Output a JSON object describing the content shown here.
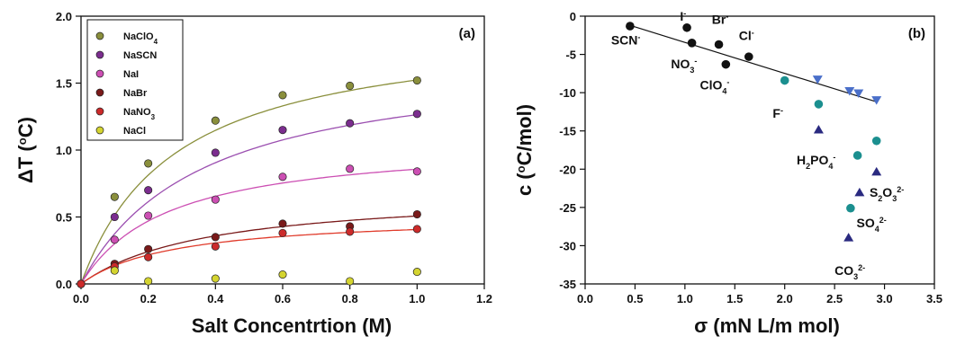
{
  "chart_data": [
    {
      "panel": "(a)",
      "type": "scatter",
      "xlabel": "Salt Concentrtion (M)",
      "ylabel_main": "ΔT (",
      "ylabel_sup": "o",
      "ylabel_tail": "C)",
      "xlim": [
        0,
        1.2
      ],
      "ylim": [
        0,
        2.0
      ],
      "xticks": [
        "0.0",
        "0.2",
        "0.4",
        "0.6",
        "0.8",
        "1.0",
        "1.2"
      ],
      "yticks": [
        "0.0",
        "0.5",
        "1.0",
        "1.5",
        "2.0"
      ],
      "grid": false,
      "legend_position": "top-left",
      "series": [
        {
          "name": "NaClO",
          "name_sub": "4",
          "color": "#8a8f3c",
          "line_color": "#8a8f3c",
          "x": [
            0,
            0.1,
            0.2,
            0.4,
            0.6,
            0.8,
            1.0
          ],
          "y": [
            0.0,
            0.65,
            0.9,
            1.22,
            1.41,
            1.48,
            1.52
          ],
          "fit": {
            "vmax": 1.95,
            "k": 0.28
          }
        },
        {
          "name": "NaSCN",
          "name_sub": "",
          "color": "#7b2d8e",
          "line_color": "#9b4fb0",
          "x": [
            0,
            0.1,
            0.2,
            0.4,
            0.6,
            0.8,
            1.0
          ],
          "y": [
            0.0,
            0.5,
            0.7,
            0.98,
            1.15,
            1.2,
            1.27
          ],
          "fit": {
            "vmax": 1.72,
            "k": 0.36
          }
        },
        {
          "name": "NaI",
          "name_sub": "",
          "color": "#cc4fb3",
          "line_color": "#cc4fb3",
          "x": [
            0,
            0.1,
            0.2,
            0.4,
            0.6,
            0.8,
            1.0
          ],
          "y": [
            0.0,
            0.33,
            0.51,
            0.63,
            0.8,
            0.86,
            0.84
          ],
          "fit": {
            "vmax": 1.08,
            "k": 0.26
          }
        },
        {
          "name": "NaBr",
          "name_sub": "",
          "color": "#7a1a1a",
          "line_color": "#7a1a1a",
          "x": [
            0,
            0.1,
            0.2,
            0.4,
            0.6,
            0.8,
            1.0
          ],
          "y": [
            0.0,
            0.15,
            0.26,
            0.35,
            0.45,
            0.43,
            0.52
          ],
          "fit": {
            "vmax": 0.7,
            "k": 0.38
          }
        },
        {
          "name": "NaNO",
          "name_sub": "3",
          "color": "#cc2a2a",
          "line_color": "#e03a2a",
          "x": [
            0,
            0.1,
            0.2,
            0.4,
            0.6,
            0.8,
            1.0
          ],
          "y": [
            0.0,
            0.13,
            0.2,
            0.28,
            0.38,
            0.39,
            0.41
          ],
          "fit": {
            "vmax": 0.52,
            "k": 0.28
          }
        },
        {
          "name": "NaCl",
          "name_sub": "",
          "color": "#d4d430",
          "line_color": "#d4d430",
          "x": [
            0.1,
            0.2,
            0.4,
            0.6,
            0.8,
            1.0
          ],
          "y": [
            0.1,
            0.02,
            0.04,
            0.07,
            0.02,
            0.09
          ],
          "fit": null
        }
      ]
    },
    {
      "panel": "(b)",
      "type": "scatter",
      "xlabel": "σ (mN L/m mol)",
      "ylabel_main": "c (",
      "ylabel_sup": "o",
      "ylabel_tail": "C/mol)",
      "xlim": [
        0,
        3.5
      ],
      "ylim": [
        -35,
        0
      ],
      "xticks": [
        "0.0",
        "0.5",
        "1.0",
        "1.5",
        "2.0",
        "2.5",
        "3.0",
        "3.5"
      ],
      "yticks": [
        "0",
        "-5",
        "-10",
        "-15",
        "-20",
        "-25",
        "-30",
        "-35"
      ],
      "grid": false,
      "fit_line": {
        "x": [
          0.45,
          2.92
        ],
        "y": [
          -1.2,
          -11.2
        ]
      },
      "points": [
        {
          "group": "monovalent",
          "shape": "circle",
          "color": "#111111",
          "x": [
            0.45,
            1.02,
            1.07,
            1.34,
            1.41,
            1.64
          ],
          "y": [
            -1.3,
            -1.5,
            -3.5,
            -3.7,
            -6.3,
            -5.3
          ]
        },
        {
          "group": "cyan",
          "shape": "circle",
          "color": "#1b8f8f",
          "x": [
            2.0,
            2.34,
            2.73,
            2.92,
            2.66
          ],
          "y": [
            -8.4,
            -11.5,
            -18.2,
            -16.3,
            -25.1
          ]
        },
        {
          "group": "blue-down",
          "shape": "tri-down",
          "color": "#4a6fc9",
          "x": [
            2.33,
            2.65,
            2.74,
            2.92
          ],
          "y": [
            -8.3,
            -9.8,
            -10.1,
            -11.0
          ]
        },
        {
          "group": "navy-up",
          "shape": "tri-up",
          "color": "#2a2a80",
          "x": [
            2.34,
            2.92,
            2.75,
            2.64
          ],
          "y": [
            -14.8,
            -20.3,
            -23.0,
            -28.9
          ]
        }
      ],
      "annotations": [
        {
          "parts": [
            [
              "SCN",
              ""
            ],
            [
              "-",
              "sup"
            ]
          ],
          "x": 0.26,
          "y": -3.7
        },
        {
          "parts": [
            [
              "I",
              ""
            ],
            [
              "-",
              "sup"
            ]
          ],
          "x": 0.95,
          "y": -0.6
        },
        {
          "parts": [
            [
              "Br",
              ""
            ],
            [
              "-",
              "sup"
            ]
          ],
          "x": 1.27,
          "y": -1.0
        },
        {
          "parts": [
            [
              "NO",
              ""
            ],
            [
              "3",
              "sub"
            ],
            [
              "-",
              "sup"
            ]
          ],
          "x": 0.86,
          "y": -6.8
        },
        {
          "parts": [
            [
              "Cl",
              ""
            ],
            [
              "-",
              "sup"
            ]
          ],
          "x": 1.54,
          "y": -3.1
        },
        {
          "parts": [
            [
              "ClO",
              ""
            ],
            [
              "4",
              "sub"
            ],
            [
              "-",
              "sup"
            ]
          ],
          "x": 1.15,
          "y": -9.6
        },
        {
          "parts": [
            [
              "F",
              ""
            ],
            [
              "-",
              "sup"
            ]
          ],
          "x": 1.88,
          "y": -13.3
        },
        {
          "parts": [
            [
              "H",
              ""
            ],
            [
              "2",
              "sub"
            ],
            [
              "PO",
              ""
            ],
            [
              "4",
              "sub"
            ],
            [
              "-",
              "sup"
            ]
          ],
          "x": 2.12,
          "y": -19.4
        },
        {
          "parts": [
            [
              "S",
              ""
            ],
            [
              "2",
              "sub"
            ],
            [
              "O",
              ""
            ],
            [
              "3",
              "sub"
            ],
            [
              "2-",
              "sup"
            ]
          ],
          "x": 2.85,
          "y": -23.6
        },
        {
          "parts": [
            [
              "SO",
              ""
            ],
            [
              "4",
              "sub"
            ],
            [
              "2-",
              "sup"
            ]
          ],
          "x": 2.72,
          "y": -27.6
        },
        {
          "parts": [
            [
              "CO",
              ""
            ],
            [
              "3",
              "sub"
            ],
            [
              "2-",
              "sup"
            ]
          ],
          "x": 2.5,
          "y": -33.8
        }
      ]
    }
  ]
}
